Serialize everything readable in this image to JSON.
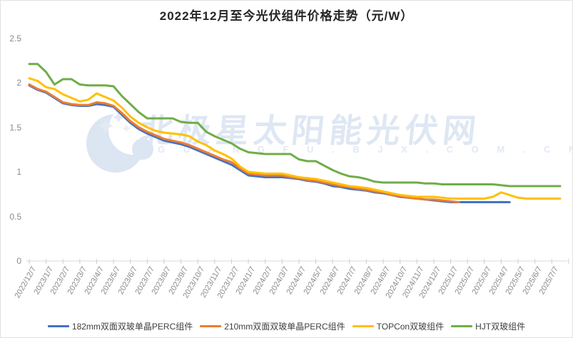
{
  "page": {
    "title": "2022年12月至今光伏组件价格走势（元/W）"
  },
  "watermark": {
    "main_text": "北极星太阳能光伏网",
    "sub_text": "G U A N G F U . B J X . C O M . C N",
    "logo": "crescent-moon-with-stars-icon",
    "color": "#dee7f3"
  },
  "chart_data": {
    "type": "line",
    "title": "2022年12月至今光伏组件价格走势（元/W）",
    "xlabel": "",
    "ylabel": "",
    "ylim": [
      0,
      2.5
    ],
    "ytick_labels": [
      "0",
      "0.5",
      "1",
      "1.5",
      "2",
      "2.5"
    ],
    "grid": false,
    "legend_position": "bottom",
    "sampling_note": "values are sampled twice per month; even value indices align with the monthly category tick labels; null means the series has ended",
    "categories": [
      "2022/12/7",
      "2023/1/7",
      "2023/2/7",
      "2023/3/7",
      "2023/4/7",
      "2023/5/7",
      "2023/6/7",
      "2023/7/7",
      "2023/8/7",
      "2023/9/7",
      "2023/10/7",
      "2023/11/7",
      "2023/12/7",
      "2024/1/7",
      "2024/2/7",
      "2024/3/7",
      "2024/4/7",
      "2024/5/7",
      "2024/6/7",
      "2024/7/7",
      "2024/8/7",
      "2024/9/7",
      "2024/10/7",
      "2024/11/7",
      "2024/12/7",
      "2025/1/7",
      "2025/2/7",
      "2025/3/7",
      "2025/4/7",
      "2025/5/7",
      "2025/6/7",
      "2025/7/7"
    ],
    "series": [
      {
        "name": "182mm双面双玻单晶PERC组件",
        "color": "#4472c4",
        "values": [
          1.97,
          1.92,
          1.89,
          1.83,
          1.77,
          1.75,
          1.74,
          1.74,
          1.76,
          1.75,
          1.73,
          1.64,
          1.55,
          1.48,
          1.43,
          1.39,
          1.35,
          1.33,
          1.31,
          1.28,
          1.24,
          1.2,
          1.16,
          1.12,
          1.08,
          1.02,
          0.96,
          0.95,
          0.94,
          0.94,
          0.94,
          0.93,
          0.92,
          0.9,
          0.89,
          0.87,
          0.84,
          0.83,
          0.81,
          0.8,
          0.79,
          0.77,
          0.76,
          0.74,
          0.72,
          0.71,
          0.7,
          0.69,
          0.68,
          0.67,
          0.66,
          0.66,
          0.66,
          0.66,
          0.66,
          0.66,
          0.66,
          0.66,
          null,
          null,
          null,
          null,
          null,
          null
        ]
      },
      {
        "name": "210mm双面双玻单晶PERC组件",
        "color": "#ed7d31",
        "values": [
          1.98,
          1.93,
          1.9,
          1.84,
          1.78,
          1.76,
          1.75,
          1.75,
          1.78,
          1.77,
          1.74,
          1.66,
          1.57,
          1.5,
          1.45,
          1.41,
          1.37,
          1.35,
          1.33,
          1.3,
          1.26,
          1.22,
          1.18,
          1.14,
          1.11,
          1.04,
          0.98,
          0.97,
          0.96,
          0.96,
          0.96,
          0.94,
          0.93,
          0.91,
          0.9,
          0.88,
          0.86,
          0.84,
          0.83,
          0.81,
          0.8,
          0.78,
          0.77,
          0.74,
          0.73,
          0.71,
          0.7,
          0.69,
          0.69,
          0.68,
          0.67,
          0.66,
          null,
          null,
          null,
          null,
          null,
          null,
          null,
          null,
          null,
          null,
          null,
          null
        ]
      },
      {
        "name": "TOPCon双玻组件",
        "color": "#ffc000",
        "values": [
          2.05,
          2.02,
          1.95,
          1.93,
          1.87,
          1.83,
          1.79,
          1.81,
          1.88,
          1.84,
          1.8,
          1.72,
          1.62,
          1.55,
          1.5,
          1.46,
          1.44,
          1.43,
          1.42,
          1.4,
          1.34,
          1.3,
          1.24,
          1.2,
          1.15,
          1.06,
          1.0,
          0.99,
          0.98,
          0.98,
          0.98,
          0.96,
          0.94,
          0.93,
          0.92,
          0.9,
          0.88,
          0.86,
          0.84,
          0.83,
          0.82,
          0.8,
          0.78,
          0.76,
          0.74,
          0.73,
          0.72,
          0.72,
          0.72,
          0.71,
          0.7,
          0.7,
          0.7,
          0.7,
          0.7,
          0.72,
          0.77,
          0.74,
          0.71,
          0.7,
          0.7,
          0.7,
          0.7,
          0.7
        ]
      },
      {
        "name": "HJT双玻组件",
        "color": "#70ad47",
        "values": [
          2.21,
          2.21,
          2.12,
          1.98,
          2.04,
          2.04,
          1.98,
          1.97,
          1.97,
          1.97,
          1.96,
          1.85,
          1.76,
          1.67,
          1.6,
          1.6,
          1.6,
          1.6,
          1.56,
          1.55,
          1.55,
          1.45,
          1.4,
          1.36,
          1.32,
          1.26,
          1.22,
          1.21,
          1.2,
          1.2,
          1.2,
          1.2,
          1.14,
          1.12,
          1.12,
          1.07,
          1.02,
          0.98,
          0.95,
          0.94,
          0.92,
          0.89,
          0.88,
          0.88,
          0.88,
          0.88,
          0.88,
          0.87,
          0.87,
          0.86,
          0.86,
          0.86,
          0.86,
          0.86,
          0.86,
          0.86,
          0.85,
          0.84,
          0.84,
          0.84,
          0.84,
          0.84,
          0.84,
          0.84
        ]
      }
    ]
  }
}
